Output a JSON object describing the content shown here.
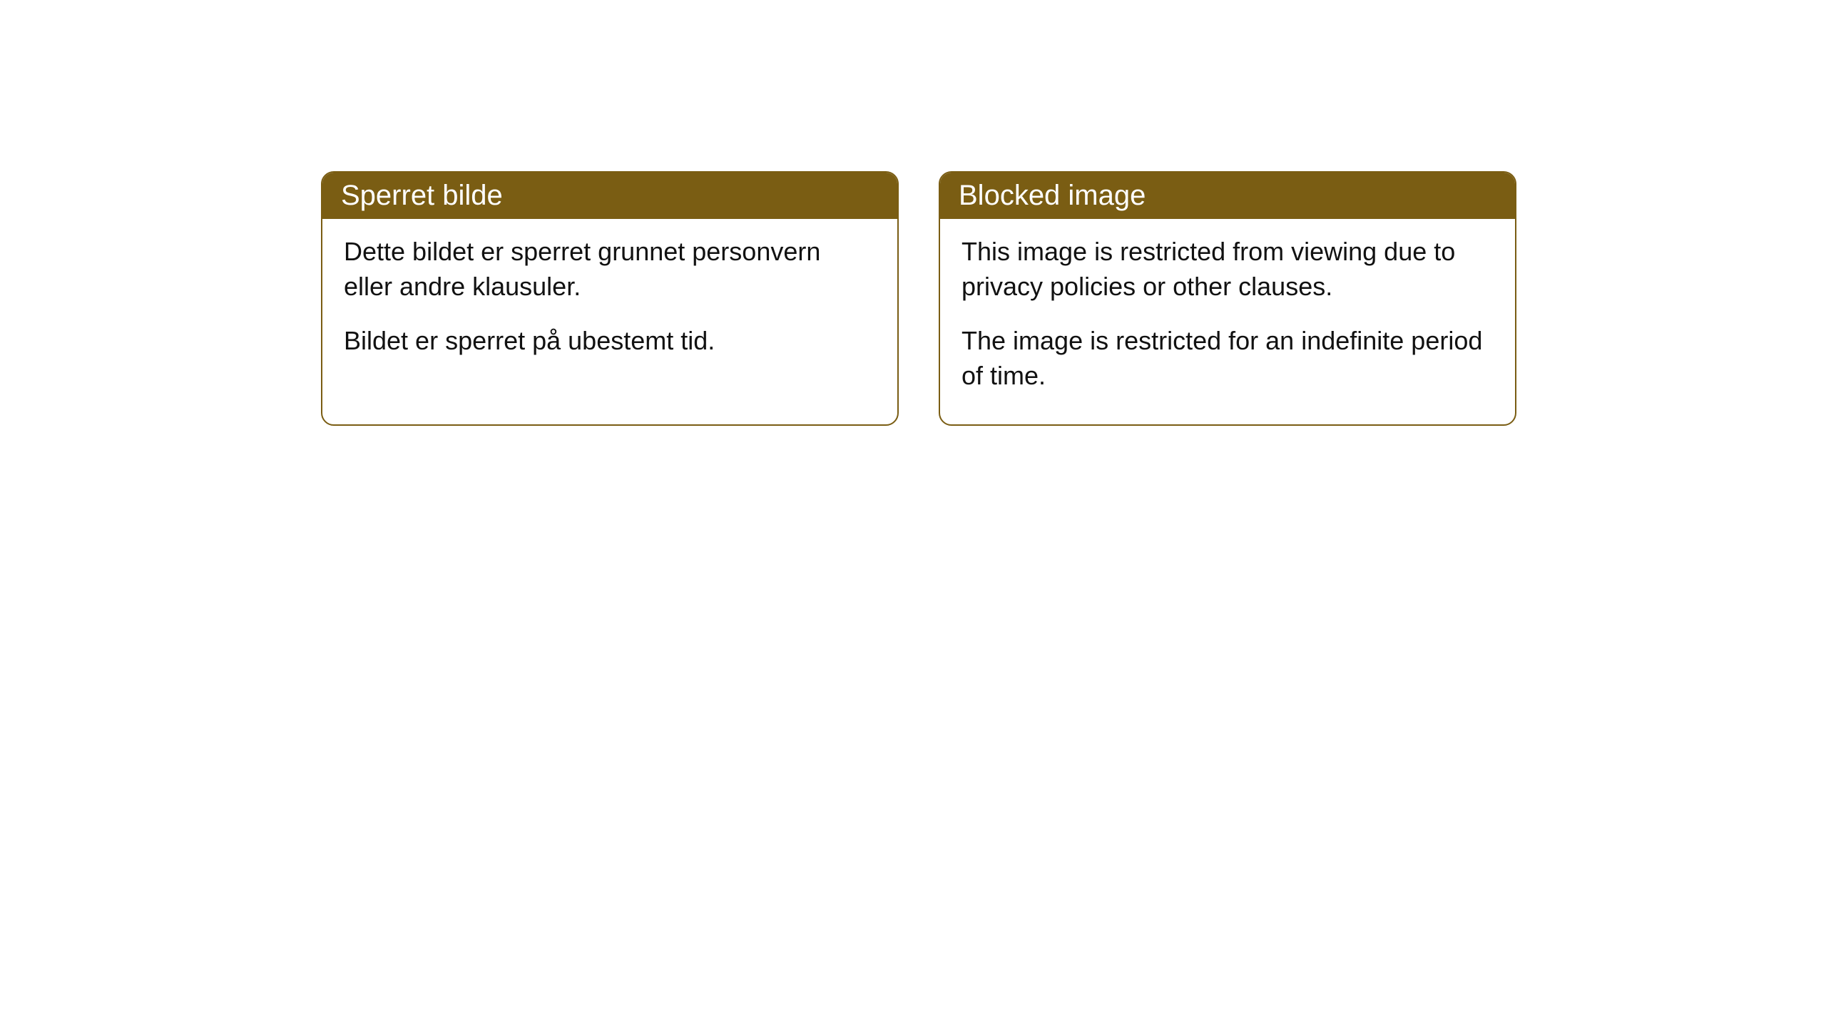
{
  "cards": [
    {
      "title": "Sperret bilde",
      "para1": "Dette bildet er sperret grunnet personvern eller andre klausuler.",
      "para2": "Bildet er sperret på ubestemt tid."
    },
    {
      "title": "Blocked image",
      "para1": "This image is restricted from viewing due to privacy policies or other clauses.",
      "para2": "The image is restricted for an indefinite period of time."
    }
  ],
  "style": {
    "header_bg": "#7a5d13",
    "header_text": "#ffffff",
    "body_text": "#111111",
    "card_border": "#7a5d13",
    "card_border_radius": 18,
    "body_bg": "#ffffff",
    "title_fontsize": 40,
    "body_fontsize": 36
  }
}
